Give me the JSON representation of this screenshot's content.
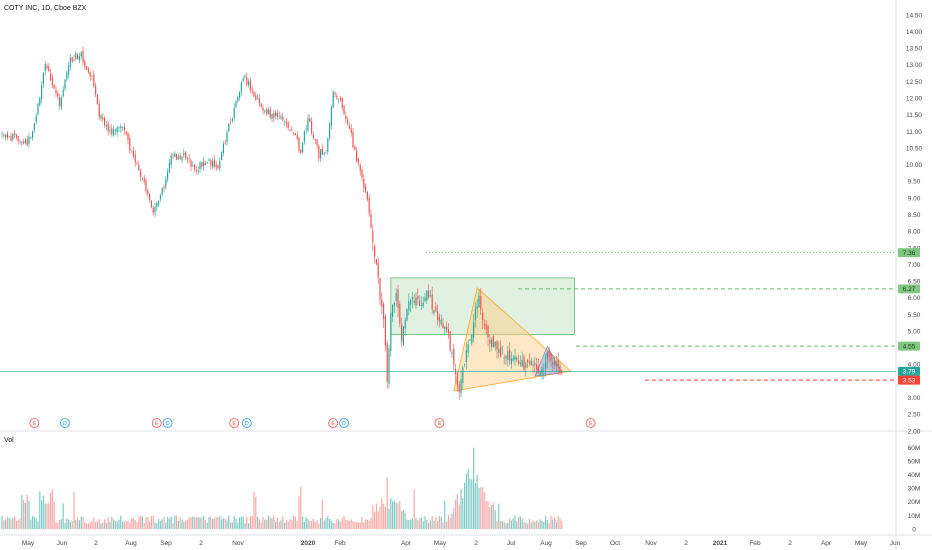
{
  "header": {
    "title": "COTY INC, 1D, Cboe BZX"
  },
  "volume_pane": {
    "label": "Vol"
  },
  "colors": {
    "up": "#26a69a",
    "down": "#ef5350",
    "up_vol": "#80cbc4",
    "down_vol": "#f7a9a7",
    "rect_fill": "#c8e6c9",
    "rect_stroke": "#66bb6a",
    "triangle_fill": "#ffcc80",
    "triangle_stroke": "#ffa726",
    "small_triangle_fill": "#9fa8da",
    "target_green": "#66bb6a",
    "stop_red": "#f44336",
    "current_line": "#26a69a",
    "tag_green": "#81c784",
    "tag_current": "#26a69a",
    "tag_red": "#f44336"
  },
  "chart_data": {
    "type": "candlestick",
    "title": "COTY INC, 1D, Cboe BZX",
    "y_axis": {
      "ylim": [
        2.0,
        14.5
      ],
      "ticks": [
        "2.00",
        "2.50",
        "3.00",
        "3.50",
        "4.00",
        "4.50",
        "5.00",
        "5.50",
        "6.00",
        "6.50",
        "7.00",
        "7.50",
        "8.00",
        "8.50",
        "9.00",
        "9.50",
        "10.00",
        "10.50",
        "11.00",
        "11.50",
        "12.00",
        "12.50",
        "13.00",
        "13.50",
        "14.00",
        "14.50"
      ]
    },
    "x_axis": {
      "ticks": [
        {
          "label": "May",
          "year": false
        },
        {
          "label": "Jun",
          "year": false
        },
        {
          "label": "2",
          "year": false
        },
        {
          "label": "Aug",
          "year": false
        },
        {
          "label": "Sep",
          "year": false
        },
        {
          "label": "2",
          "year": false
        },
        {
          "label": "Nov",
          "year": false
        },
        {
          "label": "2020",
          "year": true
        },
        {
          "label": "Feb",
          "year": false
        },
        {
          "label": "Apr",
          "year": false
        },
        {
          "label": "May",
          "year": false
        },
        {
          "label": "2",
          "year": false
        },
        {
          "label": "Jul",
          "year": false
        },
        {
          "label": "Aug",
          "year": false
        },
        {
          "label": "Sep",
          "year": false
        },
        {
          "label": "Oct",
          "year": false
        },
        {
          "label": "Nov",
          "year": false
        },
        {
          "label": "2",
          "year": false
        },
        {
          "label": "2021",
          "year": true
        },
        {
          "label": "Feb",
          "year": false
        },
        {
          "label": "2",
          "year": false
        },
        {
          "label": "Apr",
          "year": false
        },
        {
          "label": "May",
          "year": false
        },
        {
          "label": "Jun",
          "year": false
        }
      ]
    },
    "price_path": [
      {
        "b": 0,
        "p": 10.85
      },
      {
        "b": 10,
        "p": 10.8
      },
      {
        "b": 14,
        "p": 10.6
      },
      {
        "b": 18,
        "p": 11.2
      },
      {
        "b": 24,
        "p": 13.0
      },
      {
        "b": 28,
        "p": 12.4
      },
      {
        "b": 32,
        "p": 11.8
      },
      {
        "b": 38,
        "p": 13.2
      },
      {
        "b": 44,
        "p": 13.3
      },
      {
        "b": 50,
        "p": 12.6
      },
      {
        "b": 54,
        "p": 11.5
      },
      {
        "b": 60,
        "p": 11.0
      },
      {
        "b": 68,
        "p": 11.1
      },
      {
        "b": 72,
        "p": 10.3
      },
      {
        "b": 78,
        "p": 9.6
      },
      {
        "b": 84,
        "p": 8.6
      },
      {
        "b": 88,
        "p": 9.0
      },
      {
        "b": 94,
        "p": 10.2
      },
      {
        "b": 100,
        "p": 10.3
      },
      {
        "b": 108,
        "p": 9.9
      },
      {
        "b": 116,
        "p": 10.1
      },
      {
        "b": 120,
        "p": 9.8
      },
      {
        "b": 126,
        "p": 11.2
      },
      {
        "b": 130,
        "p": 11.8
      },
      {
        "b": 134,
        "p": 12.7
      },
      {
        "b": 138,
        "p": 12.3
      },
      {
        "b": 144,
        "p": 11.7
      },
      {
        "b": 150,
        "p": 11.5
      },
      {
        "b": 156,
        "p": 11.4
      },
      {
        "b": 162,
        "p": 11.0
      },
      {
        "b": 166,
        "p": 10.4
      },
      {
        "b": 170,
        "p": 11.4
      },
      {
        "b": 176,
        "p": 10.3
      },
      {
        "b": 180,
        "p": 10.5
      },
      {
        "b": 184,
        "p": 12.1
      },
      {
        "b": 188,
        "p": 11.9
      },
      {
        "b": 192,
        "p": 11.3
      },
      {
        "b": 196,
        "p": 10.4
      },
      {
        "b": 200,
        "p": 9.6
      },
      {
        "b": 204,
        "p": 8.6
      },
      {
        "b": 208,
        "p": 7.0
      },
      {
        "b": 212,
        "p": 5.2
      },
      {
        "b": 214,
        "p": 3.6
      },
      {
        "b": 216,
        "p": 5.5
      },
      {
        "b": 219,
        "p": 6.2
      },
      {
        "b": 222,
        "p": 4.7
      },
      {
        "b": 226,
        "p": 6.0
      },
      {
        "b": 232,
        "p": 5.8
      },
      {
        "b": 236,
        "p": 6.2
      },
      {
        "b": 240,
        "p": 5.6
      },
      {
        "b": 244,
        "p": 5.3
      },
      {
        "b": 248,
        "p": 4.8
      },
      {
        "b": 251,
        "p": 3.9
      },
      {
        "b": 254,
        "p": 3.3
      },
      {
        "b": 258,
        "p": 4.3
      },
      {
        "b": 262,
        "p": 5.2
      },
      {
        "b": 265,
        "p": 6.2
      },
      {
        "b": 268,
        "p": 5.1
      },
      {
        "b": 272,
        "p": 4.6
      },
      {
        "b": 276,
        "p": 4.4
      },
      {
        "b": 282,
        "p": 4.2
      },
      {
        "b": 288,
        "p": 4.05
      },
      {
        "b": 294,
        "p": 3.95
      },
      {
        "b": 300,
        "p": 3.8
      },
      {
        "b": 304,
        "p": 4.3
      },
      {
        "b": 308,
        "p": 3.9
      },
      {
        "b": 311,
        "p": 3.75
      }
    ],
    "volume_axis": {
      "ticks": [
        "0",
        "10M",
        "20M",
        "30M",
        "40M",
        "50M",
        "60M"
      ],
      "ylim": [
        0,
        65
      ]
    },
    "horizontal_levels": [
      {
        "value": 7.36,
        "style": "dotted",
        "color": "green",
        "label": "7.36"
      },
      {
        "value": 6.27,
        "style": "dashed",
        "color": "green",
        "label": "6.27"
      },
      {
        "value": 4.55,
        "style": "dashed",
        "color": "green",
        "label": "4.55"
      },
      {
        "value": 3.79,
        "style": "solid",
        "color": "current",
        "label": "3.79"
      },
      {
        "value": 3.53,
        "style": "dashed",
        "color": "red",
        "label": "3.53"
      }
    ],
    "drawings": {
      "rectangle": {
        "bar_from": 216,
        "bar_to": 318,
        "price_top": 6.6,
        "price_bottom": 4.9
      },
      "triangle": [
        {
          "b": 251,
          "p": 3.2
        },
        {
          "b": 264,
          "p": 6.3
        },
        {
          "b": 316,
          "p": 3.8
        }
      ],
      "small_triangle": [
        {
          "b": 296,
          "p": 3.65
        },
        {
          "b": 303,
          "p": 4.55
        },
        {
          "b": 311,
          "p": 3.75
        }
      ]
    },
    "events": [
      {
        "label": "E",
        "type": "earnings",
        "b": 18
      },
      {
        "label": "D",
        "type": "dividend",
        "b": 35
      },
      {
        "label": "E",
        "type": "earnings",
        "b": 86
      },
      {
        "label": "D",
        "type": "dividend",
        "b": 92
      },
      {
        "label": "E",
        "type": "earnings",
        "b": 129
      },
      {
        "label": "D",
        "type": "dividend",
        "b": 136
      },
      {
        "label": "E",
        "type": "earnings",
        "b": 184
      },
      {
        "label": "D",
        "type": "dividend",
        "b": 190
      },
      {
        "label": "E",
        "type": "earnings",
        "b": 243
      },
      {
        "label": "E",
        "type": "earnings",
        "b": 327
      }
    ]
  }
}
